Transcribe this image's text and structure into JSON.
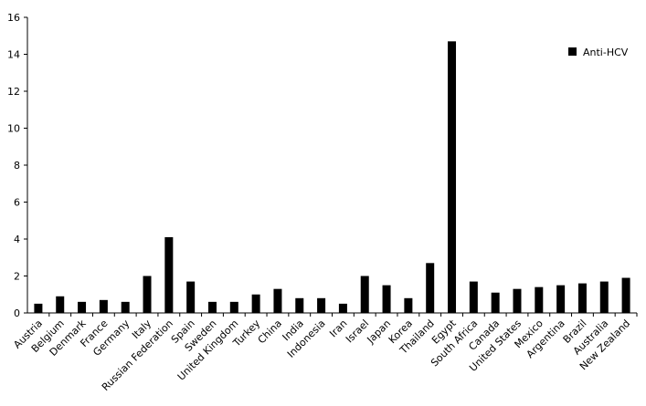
{
  "chart_data": {
    "type": "bar",
    "categories": [
      "Austria",
      "Belgium",
      "Denmark",
      "France",
      "Germany",
      "Italy",
      "Russian Federation",
      "Spain",
      "Sweden",
      "United Kingdom",
      "Turkey",
      "China",
      "India",
      "Indonesia",
      "Iran",
      "Israel",
      "Japan",
      "Korea",
      "Thailand",
      "Egypt",
      "South Africa",
      "Canada",
      "United States",
      "Mexico",
      "Argentina",
      "Brazil",
      "Australia",
      "New Zealand"
    ],
    "series": [
      {
        "name": "Anti-HCV",
        "values": [
          0.5,
          0.9,
          0.6,
          0.7,
          0.6,
          2.0,
          4.1,
          1.7,
          0.6,
          0.6,
          1.0,
          1.3,
          0.8,
          0.8,
          0.5,
          2.0,
          1.5,
          0.8,
          2.7,
          14.7,
          1.7,
          1.1,
          1.3,
          1.4,
          1.5,
          1.6,
          1.7,
          1.9
        ],
        "color": "#000000"
      }
    ],
    "yticks": [
      "0",
      "2",
      "4",
      "6",
      "8",
      "10",
      "12",
      "14",
      "16"
    ],
    "ylim": [
      0,
      16
    ],
    "grid": false,
    "legend_position": "top-right"
  }
}
